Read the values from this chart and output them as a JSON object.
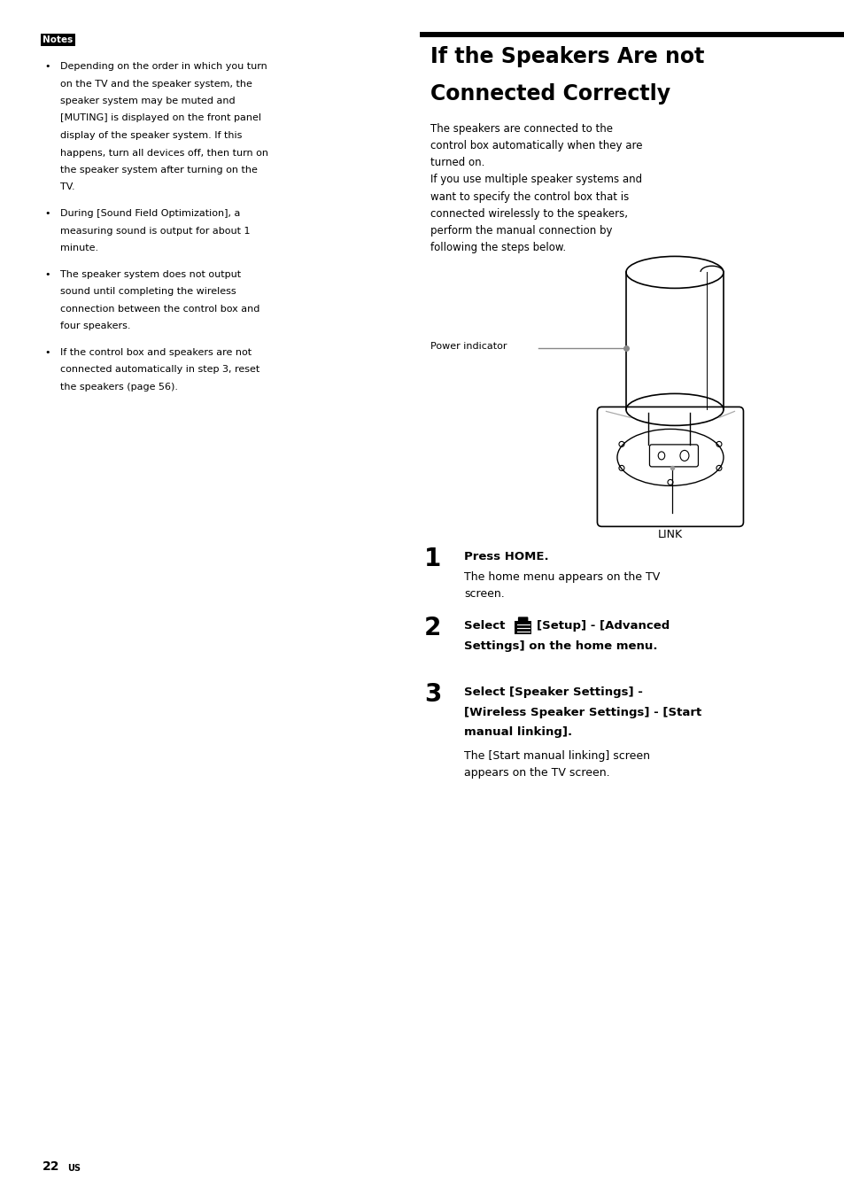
{
  "bg_color": "#ffffff",
  "page_width": 9.54,
  "page_height": 13.57,
  "notes_label": "Notes",
  "notes_bullets": [
    "Depending on the order in which you turn\non the TV and the speaker system, the\nspeaker system may be muted and\n[MUTING] is displayed on the front panel\ndisplay of the speaker system. If this\nhappens, turn all devices off, then turn on\nthe speaker system after turning on the\nTV.",
    "During [Sound Field Optimization], a\nmeasuring sound is output for about 1\nminute.",
    "The speaker system does not output\nsound until completing the wireless\nconnection between the control box and\nfour speakers.",
    "If the control box and speakers are not\nconnected automatically in step 3, reset\nthe speakers (page 56)."
  ],
  "right_title_line1": "If the Speakers Are not",
  "right_title_line2": "Connected Correctly",
  "right_intro_lines": [
    "The speakers are connected to the",
    "control box automatically when they are",
    "turned on.",
    "If you use multiple speaker systems and",
    "want to specify the control box that is",
    "connected wirelessly to the speakers,",
    "perform the manual connection by",
    "following the steps below."
  ],
  "power_indicator_label": "Power indicator",
  "link_label": "LINK",
  "step1_num": "1",
  "step1_bold": "Press HOME.",
  "step1_text": "The home menu appears on the TV\nscreen.",
  "step2_num": "2",
  "step2_bold_pre": "Select ",
  "step2_bold_post": " [Setup] - [Advanced\nSettings] on the home menu.",
  "step3_num": "3",
  "step3_bold": "Select [Speaker Settings] -\n[Wireless Speaker Settings] - [Start\nmanual linking].",
  "step3_text": "The [Start manual linking] screen\nappears on the TV screen.",
  "page_num": "22",
  "page_num_super": "US"
}
